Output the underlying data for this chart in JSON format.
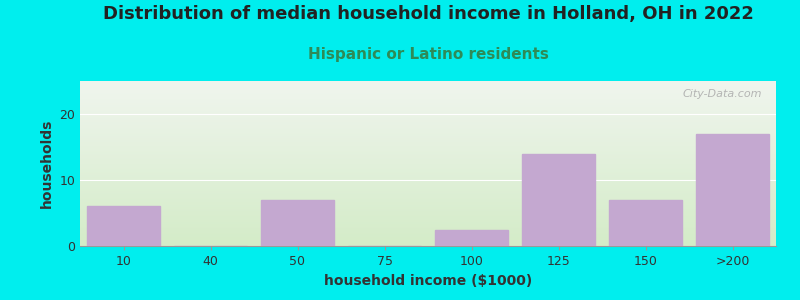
{
  "title": "Distribution of median household income in Holland, OH in 2022",
  "subtitle": "Hispanic or Latino residents",
  "xlabel": "household income ($1000)",
  "ylabel": "households",
  "categories": [
    "10",
    "40",
    "50",
    "75",
    "100",
    "125",
    "150",
    ">200"
  ],
  "values": [
    6,
    0,
    7,
    0,
    2.5,
    14,
    7,
    17
  ],
  "bar_color": "#C4A8D0",
  "bar_edgecolor": "#C4A8D0",
  "ylim": [
    0,
    25
  ],
  "yticks": [
    0,
    10,
    20
  ],
  "background_outer": "#00EEEE",
  "background_inner_top": "#f0f5ee",
  "background_inner_bottom": "#d4ecc8",
  "title_fontsize": 13,
  "title_color": "#222222",
  "subtitle_fontsize": 11,
  "subtitle_color": "#2E8B57",
  "axis_label_fontsize": 10,
  "tick_fontsize": 9,
  "watermark": "City-Data.com"
}
